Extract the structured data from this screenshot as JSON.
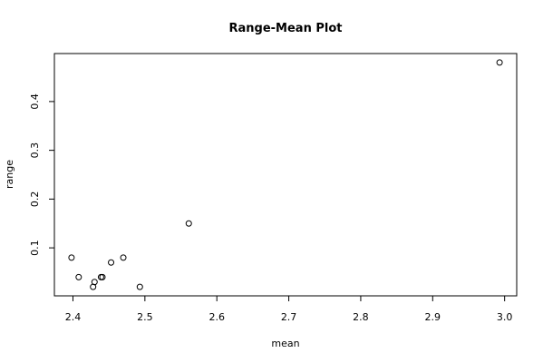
{
  "chart_data": {
    "type": "scatter",
    "title": "Range-Mean Plot",
    "x_label": "mean",
    "y_label": "range",
    "x": [
      2.398,
      2.408,
      2.428,
      2.43,
      2.439,
      2.441,
      2.453,
      2.47,
      2.493,
      2.561,
      2.993
    ],
    "values": [
      0.08,
      0.04,
      0.02,
      0.03,
      0.04,
      0.04,
      0.07,
      0.08,
      0.02,
      0.15,
      0.48
    ],
    "color": "#000000",
    "xlim": [
      2.3742,
      3.0168
    ],
    "ylim": [
      0.0016,
      0.4984
    ],
    "xticks": [
      2.4,
      2.5,
      2.6,
      2.7,
      2.8,
      2.9,
      {
        "value": 3.0,
        "label": "3.0"
      }
    ],
    "yticks": [
      0.1,
      0.2,
      0.3,
      0.4
    ]
  }
}
